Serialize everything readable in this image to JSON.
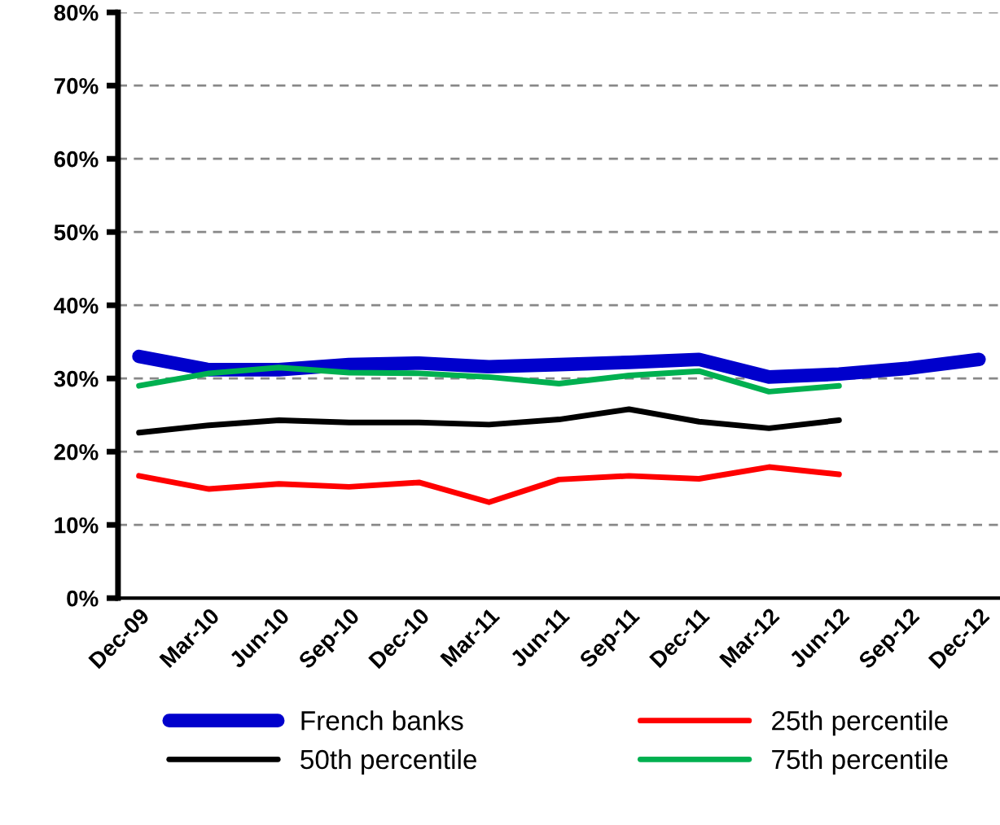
{
  "chart_data": {
    "type": "line",
    "categories": [
      "Dec-09",
      "Mar-10",
      "Jun-10",
      "Sep-10",
      "Dec-10",
      "Mar-11",
      "Jun-11",
      "Sep-11",
      "Dec-11",
      "Mar-12",
      "Jun-12",
      "Sep-12",
      "Dec-12"
    ],
    "series": [
      {
        "name": "French banks",
        "color": "#0000cc",
        "values": [
          33.0,
          31.2,
          31.2,
          31.9,
          32.1,
          31.6,
          31.9,
          32.2,
          32.6,
          30.2,
          30.6,
          31.4,
          32.6
        ]
      },
      {
        "name": "25th percentile",
        "color": "#ff0000",
        "values": [
          16.7,
          14.9,
          15.6,
          15.2,
          15.8,
          13.1,
          16.2,
          16.7,
          16.3,
          17.9,
          16.9,
          null,
          null
        ]
      },
      {
        "name": "50th percentile",
        "color": "#000000",
        "values": [
          22.6,
          23.6,
          24.3,
          24.0,
          24.0,
          23.7,
          24.4,
          25.8,
          24.1,
          23.2,
          24.3,
          null,
          null
        ]
      },
      {
        "name": "75th percentile",
        "color": "#00b050",
        "values": [
          29.0,
          30.7,
          31.5,
          30.8,
          30.7,
          30.2,
          29.3,
          30.4,
          31.0,
          28.2,
          29.0,
          null,
          null
        ]
      }
    ],
    "ylim": [
      0,
      80
    ],
    "yticks": [
      {
        "value": 0,
        "label": "0%"
      },
      {
        "value": 10,
        "label": "10%"
      },
      {
        "value": 20,
        "label": "20%"
      },
      {
        "value": 30,
        "label": "30%"
      },
      {
        "value": 40,
        "label": "40%"
      },
      {
        "value": 50,
        "label": "50%"
      },
      {
        "value": 60,
        "label": "60%"
      },
      {
        "value": 70,
        "label": "70%"
      },
      {
        "value": 80,
        "label": "80%"
      }
    ],
    "grid": "y",
    "legend": "bottom",
    "line_style": "solid",
    "marker": "none"
  }
}
